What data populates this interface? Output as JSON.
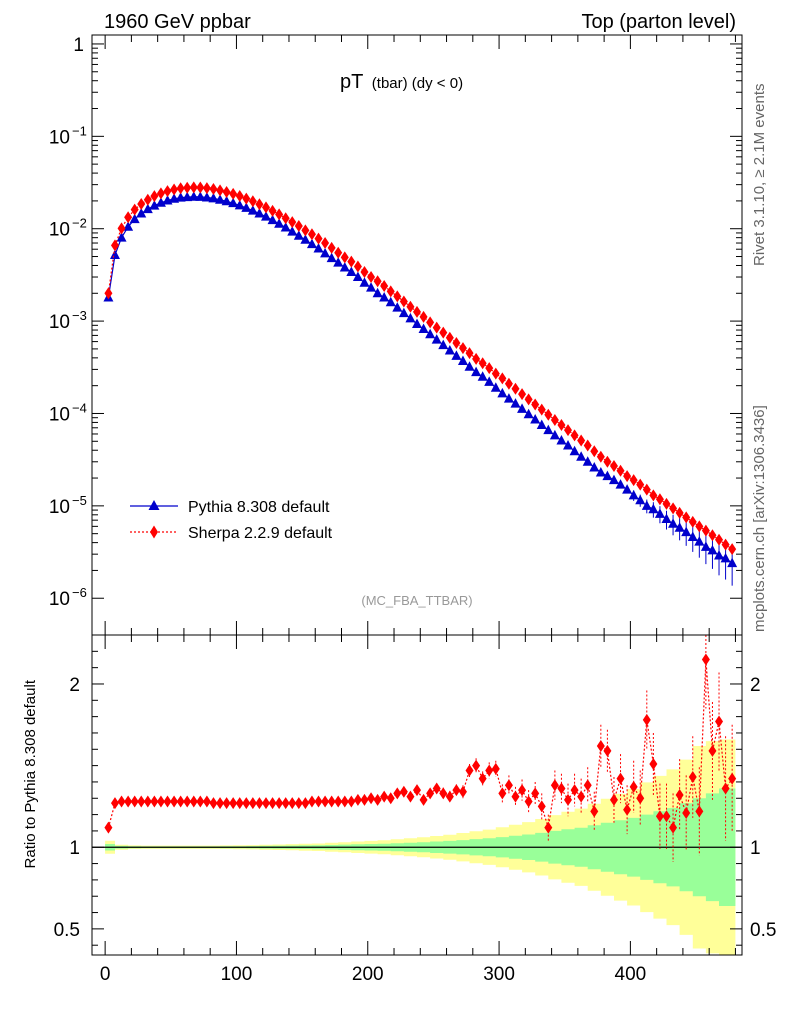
{
  "header": {
    "left": "1960 GeV ppbar",
    "right": "Top (parton level)"
  },
  "side_labels": {
    "rivet": "Rivet 3.1.10, ≥ 2.1M events",
    "mcplots": "mcplots.cern.ch [arXiv:1306.3436]"
  },
  "colors": {
    "pythia": "#0000cc",
    "sherpa": "#ff0000",
    "band_inner": "#99ff99",
    "band_outer": "#ffff99"
  },
  "chart_data": [
    {
      "type": "line",
      "title_main": "pT",
      "title_sub": "(tbar) (dy < 0)",
      "watermark": "(MC_FBA_TTBAR)",
      "yscale": "log",
      "xlim": [
        -10,
        485
      ],
      "ylim": [
        4e-07,
        1.25
      ],
      "y_tick_labels": [
        "1",
        "10",
        "10",
        "10",
        "10",
        "10",
        "10"
      ],
      "y_tick_exponents": [
        "",
        "−1",
        "−2",
        "−3",
        "−4",
        "−5",
        "−6"
      ],
      "legend_position": "bottom-left",
      "series": [
        {
          "name": "Pythia 8.308 default",
          "marker": "triangle",
          "x": [
            2.5,
            7.5,
            12.5,
            17.5,
            22.5,
            27.5,
            32.5,
            37.5,
            42.5,
            47.5,
            52.5,
            57.5,
            62.5,
            67.5,
            72.5,
            77.5,
            82.5,
            87.5,
            92.5,
            97.5,
            102.5,
            107.5,
            112.5,
            117.5,
            122.5,
            127.5,
            132.5,
            137.5,
            142.5,
            147.5,
            152.5,
            157.5,
            162.5,
            167.5,
            172.5,
            177.5,
            182.5,
            187.5,
            192.5,
            197.5,
            202.5,
            207.5,
            212.5,
            217.5,
            222.5,
            227.5,
            232.5,
            237.5,
            242.5,
            247.5,
            252.5,
            257.5,
            262.5,
            267.5,
            272.5,
            277.5,
            282.5,
            287.5,
            292.5,
            297.5,
            302.5,
            307.5,
            312.5,
            317.5,
            322.5,
            327.5,
            332.5,
            337.5,
            342.5,
            347.5,
            352.5,
            357.5,
            362.5,
            367.5,
            372.5,
            377.5,
            382.5,
            387.5,
            392.5,
            397.5,
            402.5,
            407.5,
            412.5,
            417.5,
            422.5,
            427.5,
            432.5,
            437.5,
            442.5,
            447.5,
            452.5,
            457.5,
            462.5,
            467.5,
            472.5,
            477.5
          ],
          "y": [
            0.0018,
            0.0052,
            0.008,
            0.0105,
            0.0127,
            0.0146,
            0.0163,
            0.0178,
            0.0191,
            0.0202,
            0.0211,
            0.0217,
            0.022,
            0.0222,
            0.0221,
            0.0218,
            0.0213,
            0.0206,
            0.0198,
            0.0189,
            0.0179,
            0.0168,
            0.0157,
            0.0146,
            0.0135,
            0.0124,
            0.0113,
            0.0103,
            0.0093,
            0.0084,
            0.0076,
            0.0068,
            0.0061,
            0.0054,
            0.0048,
            0.0043,
            0.0038,
            0.0034,
            0.003,
            0.0026,
            0.0023,
            0.002,
            0.0018,
            0.0016,
            0.0014,
            0.00122,
            0.00107,
            0.00093,
            0.00082,
            0.00072,
            0.00063,
            0.00055,
            0.00048,
            0.00042,
            0.00037,
            0.00032,
            0.00028,
            0.00025,
            0.00022,
            0.00019,
            0.000165,
            0.000145,
            0.000128,
            0.000112,
            9.8e-05,
            8.6e-05,
            7.5e-05,
            6.6e-05,
            5.8e-05,
            5.1e-05,
            4.5e-05,
            3.9e-05,
            3.4e-05,
            3e-05,
            2.6e-05,
            2.3e-05,
            2.1e-05,
            1.9e-05,
            1.7e-05,
            1.5e-05,
            1.3e-05,
            1.15e-05,
            1e-05,
            9.2e-06,
            8.2e-06,
            7.2e-06,
            6.4e-06,
            5.8e-06,
            5.2e-06,
            4.6e-06,
            4.1e-06,
            3.6e-06,
            3.3e-06,
            2.9e-06,
            2.7e-06,
            2.4e-06
          ]
        },
        {
          "name": "Sherpa 2.2.9 default",
          "marker": "diamond",
          "x": [
            2.5,
            7.5,
            12.5,
            17.5,
            22.5,
            27.5,
            32.5,
            37.5,
            42.5,
            47.5,
            52.5,
            57.5,
            62.5,
            67.5,
            72.5,
            77.5,
            82.5,
            87.5,
            92.5,
            97.5,
            102.5,
            107.5,
            112.5,
            117.5,
            122.5,
            127.5,
            132.5,
            137.5,
            142.5,
            147.5,
            152.5,
            157.5,
            162.5,
            167.5,
            172.5,
            177.5,
            182.5,
            187.5,
            192.5,
            197.5,
            202.5,
            207.5,
            212.5,
            217.5,
            222.5,
            227.5,
            232.5,
            237.5,
            242.5,
            247.5,
            252.5,
            257.5,
            262.5,
            267.5,
            272.5,
            277.5,
            282.5,
            287.5,
            292.5,
            297.5,
            302.5,
            307.5,
            312.5,
            317.5,
            322.5,
            327.5,
            332.5,
            337.5,
            342.5,
            347.5,
            352.5,
            357.5,
            362.5,
            367.5,
            372.5,
            377.5,
            382.5,
            387.5,
            392.5,
            397.5,
            402.5,
            407.5,
            412.5,
            417.5,
            422.5,
            427.5,
            432.5,
            437.5,
            442.5,
            447.5,
            452.5,
            457.5,
            462.5,
            467.5,
            472.5,
            477.5
          ],
          "y": [
            0.002,
            0.0066,
            0.0101,
            0.0133,
            0.0161,
            0.0185,
            0.0206,
            0.0225,
            0.0241,
            0.0255,
            0.0266,
            0.0274,
            0.0278,
            0.028,
            0.0279,
            0.0275,
            0.0269,
            0.026,
            0.025,
            0.0238,
            0.0226,
            0.0212,
            0.0198,
            0.0184,
            0.017,
            0.0156,
            0.0143,
            0.013,
            0.0118,
            0.0107,
            0.0096,
            0.0087,
            0.0078,
            0.007,
            0.0062,
            0.0055,
            0.0049,
            0.0044,
            0.0039,
            0.0034,
            0.003,
            0.0027,
            0.0024,
            0.0021,
            0.00185,
            0.00163,
            0.00143,
            0.00126,
            0.00111,
            0.00097,
            0.00085,
            0.00075,
            0.00066,
            0.00058,
            0.00051,
            0.00045,
            0.00039,
            0.00035,
            0.00031,
            0.00027,
            0.00024,
            0.00021,
            0.000185,
            0.000162,
            0.000142,
            0.000125,
            0.00011,
            9.7e-05,
            8.5e-05,
            7.5e-05,
            6.6e-05,
            5.8e-05,
            5.1e-05,
            4.5e-05,
            3.9e-05,
            3.4e-05,
            3e-05,
            2.7e-05,
            2.4e-05,
            2.1e-05,
            1.9e-05,
            1.7e-05,
            1.5e-05,
            1.3e-05,
            1.18e-05,
            1.05e-05,
            9.4e-06,
            8.4e-06,
            7.5e-06,
            6.7e-06,
            6e-06,
            5.4e-06,
            4.8e-06,
            4.3e-06,
            3.8e-06,
            3.4e-06
          ]
        }
      ]
    },
    {
      "type": "line",
      "ylabel": "Ratio to Pythia 8.308 default",
      "xlim": [
        -10,
        485
      ],
      "ylim": [
        0.34,
        2.3
      ],
      "yticks": [
        0.5,
        1,
        2
      ],
      "y_tick_labels": [
        "0.5",
        "1",
        "2"
      ],
      "xticks": [
        0,
        100,
        200,
        300,
        400
      ],
      "x_tick_labels": [
        "0",
        "100",
        "200",
        "300",
        "400"
      ],
      "reference_line": 1,
      "band_x": [
        2.5,
        12.5,
        22.5,
        32.5,
        42.5,
        52.5,
        62.5,
        72.5,
        82.5,
        92.5,
        102.5,
        112.5,
        122.5,
        132.5,
        142.5,
        152.5,
        162.5,
        172.5,
        182.5,
        192.5,
        202.5,
        212.5,
        222.5,
        232.5,
        242.5,
        252.5,
        262.5,
        272.5,
        282.5,
        292.5,
        302.5,
        312.5,
        322.5,
        332.5,
        342.5,
        352.5,
        362.5,
        372.5,
        382.5,
        392.5,
        402.5,
        412.5,
        422.5,
        432.5,
        442.5,
        452.5,
        462.5,
        472.5,
        477.5
      ],
      "band_inner_halfwidth": [
        0.02,
        0.008,
        0.006,
        0.005,
        0.005,
        0.005,
        0.005,
        0.005,
        0.005,
        0.006,
        0.006,
        0.007,
        0.008,
        0.009,
        0.01,
        0.011,
        0.012,
        0.014,
        0.016,
        0.018,
        0.02,
        0.022,
        0.025,
        0.028,
        0.031,
        0.035,
        0.039,
        0.044,
        0.05,
        0.055,
        0.062,
        0.07,
        0.078,
        0.088,
        0.1,
        0.11,
        0.12,
        0.135,
        0.15,
        0.165,
        0.18,
        0.2,
        0.22,
        0.24,
        0.27,
        0.3,
        0.33,
        0.36,
        0.36
      ],
      "band_outer_halfwidth": [
        0.04,
        0.015,
        0.011,
        0.01,
        0.01,
        0.01,
        0.01,
        0.01,
        0.01,
        0.011,
        0.012,
        0.013,
        0.015,
        0.017,
        0.019,
        0.021,
        0.023,
        0.027,
        0.031,
        0.035,
        0.039,
        0.043,
        0.049,
        0.055,
        0.061,
        0.069,
        0.077,
        0.087,
        0.098,
        0.108,
        0.122,
        0.138,
        0.154,
        0.173,
        0.197,
        0.217,
        0.237,
        0.267,
        0.297,
        0.327,
        0.357,
        0.397,
        0.437,
        0.477,
        0.537,
        0.62,
        0.65,
        0.66,
        0.66
      ],
      "series": [
        {
          "name": "Sherpa 2.2.9 default / Pythia 8.308 default",
          "marker": "diamond",
          "x": [
            2.5,
            7.5,
            12.5,
            17.5,
            22.5,
            27.5,
            32.5,
            37.5,
            42.5,
            47.5,
            52.5,
            57.5,
            62.5,
            67.5,
            72.5,
            77.5,
            82.5,
            87.5,
            92.5,
            97.5,
            102.5,
            107.5,
            112.5,
            117.5,
            122.5,
            127.5,
            132.5,
            137.5,
            142.5,
            147.5,
            152.5,
            157.5,
            162.5,
            167.5,
            172.5,
            177.5,
            182.5,
            187.5,
            192.5,
            197.5,
            202.5,
            207.5,
            212.5,
            217.5,
            222.5,
            227.5,
            232.5,
            237.5,
            242.5,
            247.5,
            252.5,
            257.5,
            262.5,
            267.5,
            272.5,
            277.5,
            282.5,
            287.5,
            292.5,
            297.5,
            302.5,
            307.5,
            312.5,
            317.5,
            322.5,
            327.5,
            332.5,
            337.5,
            342.5,
            347.5,
            352.5,
            357.5,
            362.5,
            367.5,
            372.5,
            377.5,
            382.5,
            387.5,
            392.5,
            397.5,
            402.5,
            407.5,
            412.5,
            417.5,
            422.5,
            427.5,
            432.5,
            437.5,
            442.5,
            447.5,
            452.5,
            457.5,
            462.5,
            467.5,
            472.5,
            477.5
          ],
          "y": [
            1.12,
            1.27,
            1.28,
            1.28,
            1.28,
            1.28,
            1.28,
            1.28,
            1.28,
            1.28,
            1.28,
            1.28,
            1.28,
            1.28,
            1.28,
            1.28,
            1.27,
            1.27,
            1.27,
            1.27,
            1.27,
            1.27,
            1.27,
            1.27,
            1.27,
            1.27,
            1.27,
            1.27,
            1.27,
            1.27,
            1.27,
            1.28,
            1.28,
            1.28,
            1.28,
            1.28,
            1.28,
            1.28,
            1.29,
            1.29,
            1.3,
            1.29,
            1.31,
            1.3,
            1.33,
            1.34,
            1.31,
            1.35,
            1.29,
            1.33,
            1.36,
            1.33,
            1.31,
            1.35,
            1.34,
            1.47,
            1.5,
            1.42,
            1.47,
            1.48,
            1.33,
            1.38,
            1.31,
            1.35,
            1.28,
            1.33,
            1.25,
            1.12,
            1.38,
            1.36,
            1.29,
            1.35,
            1.31,
            1.38,
            1.22,
            1.62,
            1.59,
            1.29,
            1.42,
            1.23,
            1.37,
            1.3,
            1.78,
            1.51,
            1.19,
            1.19,
            1.12,
            1.32,
            1.21,
            1.43,
            1.22,
            2.15,
            1.59,
            1.77,
            1.36,
            1.42
          ],
          "err": [
            0.02,
            0.01,
            0.01,
            0.01,
            0.01,
            0.01,
            0.01,
            0.01,
            0.01,
            0.01,
            0.01,
            0.01,
            0.01,
            0.01,
            0.01,
            0.01,
            0.01,
            0.01,
            0.01,
            0.01,
            0.01,
            0.01,
            0.01,
            0.01,
            0.01,
            0.01,
            0.01,
            0.01,
            0.01,
            0.01,
            0.01,
            0.01,
            0.015,
            0.015,
            0.015,
            0.015,
            0.015,
            0.02,
            0.02,
            0.02,
            0.02,
            0.02,
            0.02,
            0.025,
            0.025,
            0.025,
            0.025,
            0.03,
            0.03,
            0.03,
            0.03,
            0.035,
            0.035,
            0.035,
            0.04,
            0.04,
            0.045,
            0.045,
            0.05,
            0.05,
            0.055,
            0.06,
            0.06,
            0.065,
            0.07,
            0.07,
            0.08,
            0.08,
            0.09,
            0.09,
            0.1,
            0.1,
            0.11,
            0.11,
            0.12,
            0.13,
            0.13,
            0.14,
            0.15,
            0.15,
            0.16,
            0.17,
            0.18,
            0.19,
            0.2,
            0.2,
            0.21,
            0.22,
            0.23,
            0.25,
            0.27,
            0.3,
            0.3,
            0.3,
            0.32,
            0.33
          ]
        }
      ]
    }
  ]
}
